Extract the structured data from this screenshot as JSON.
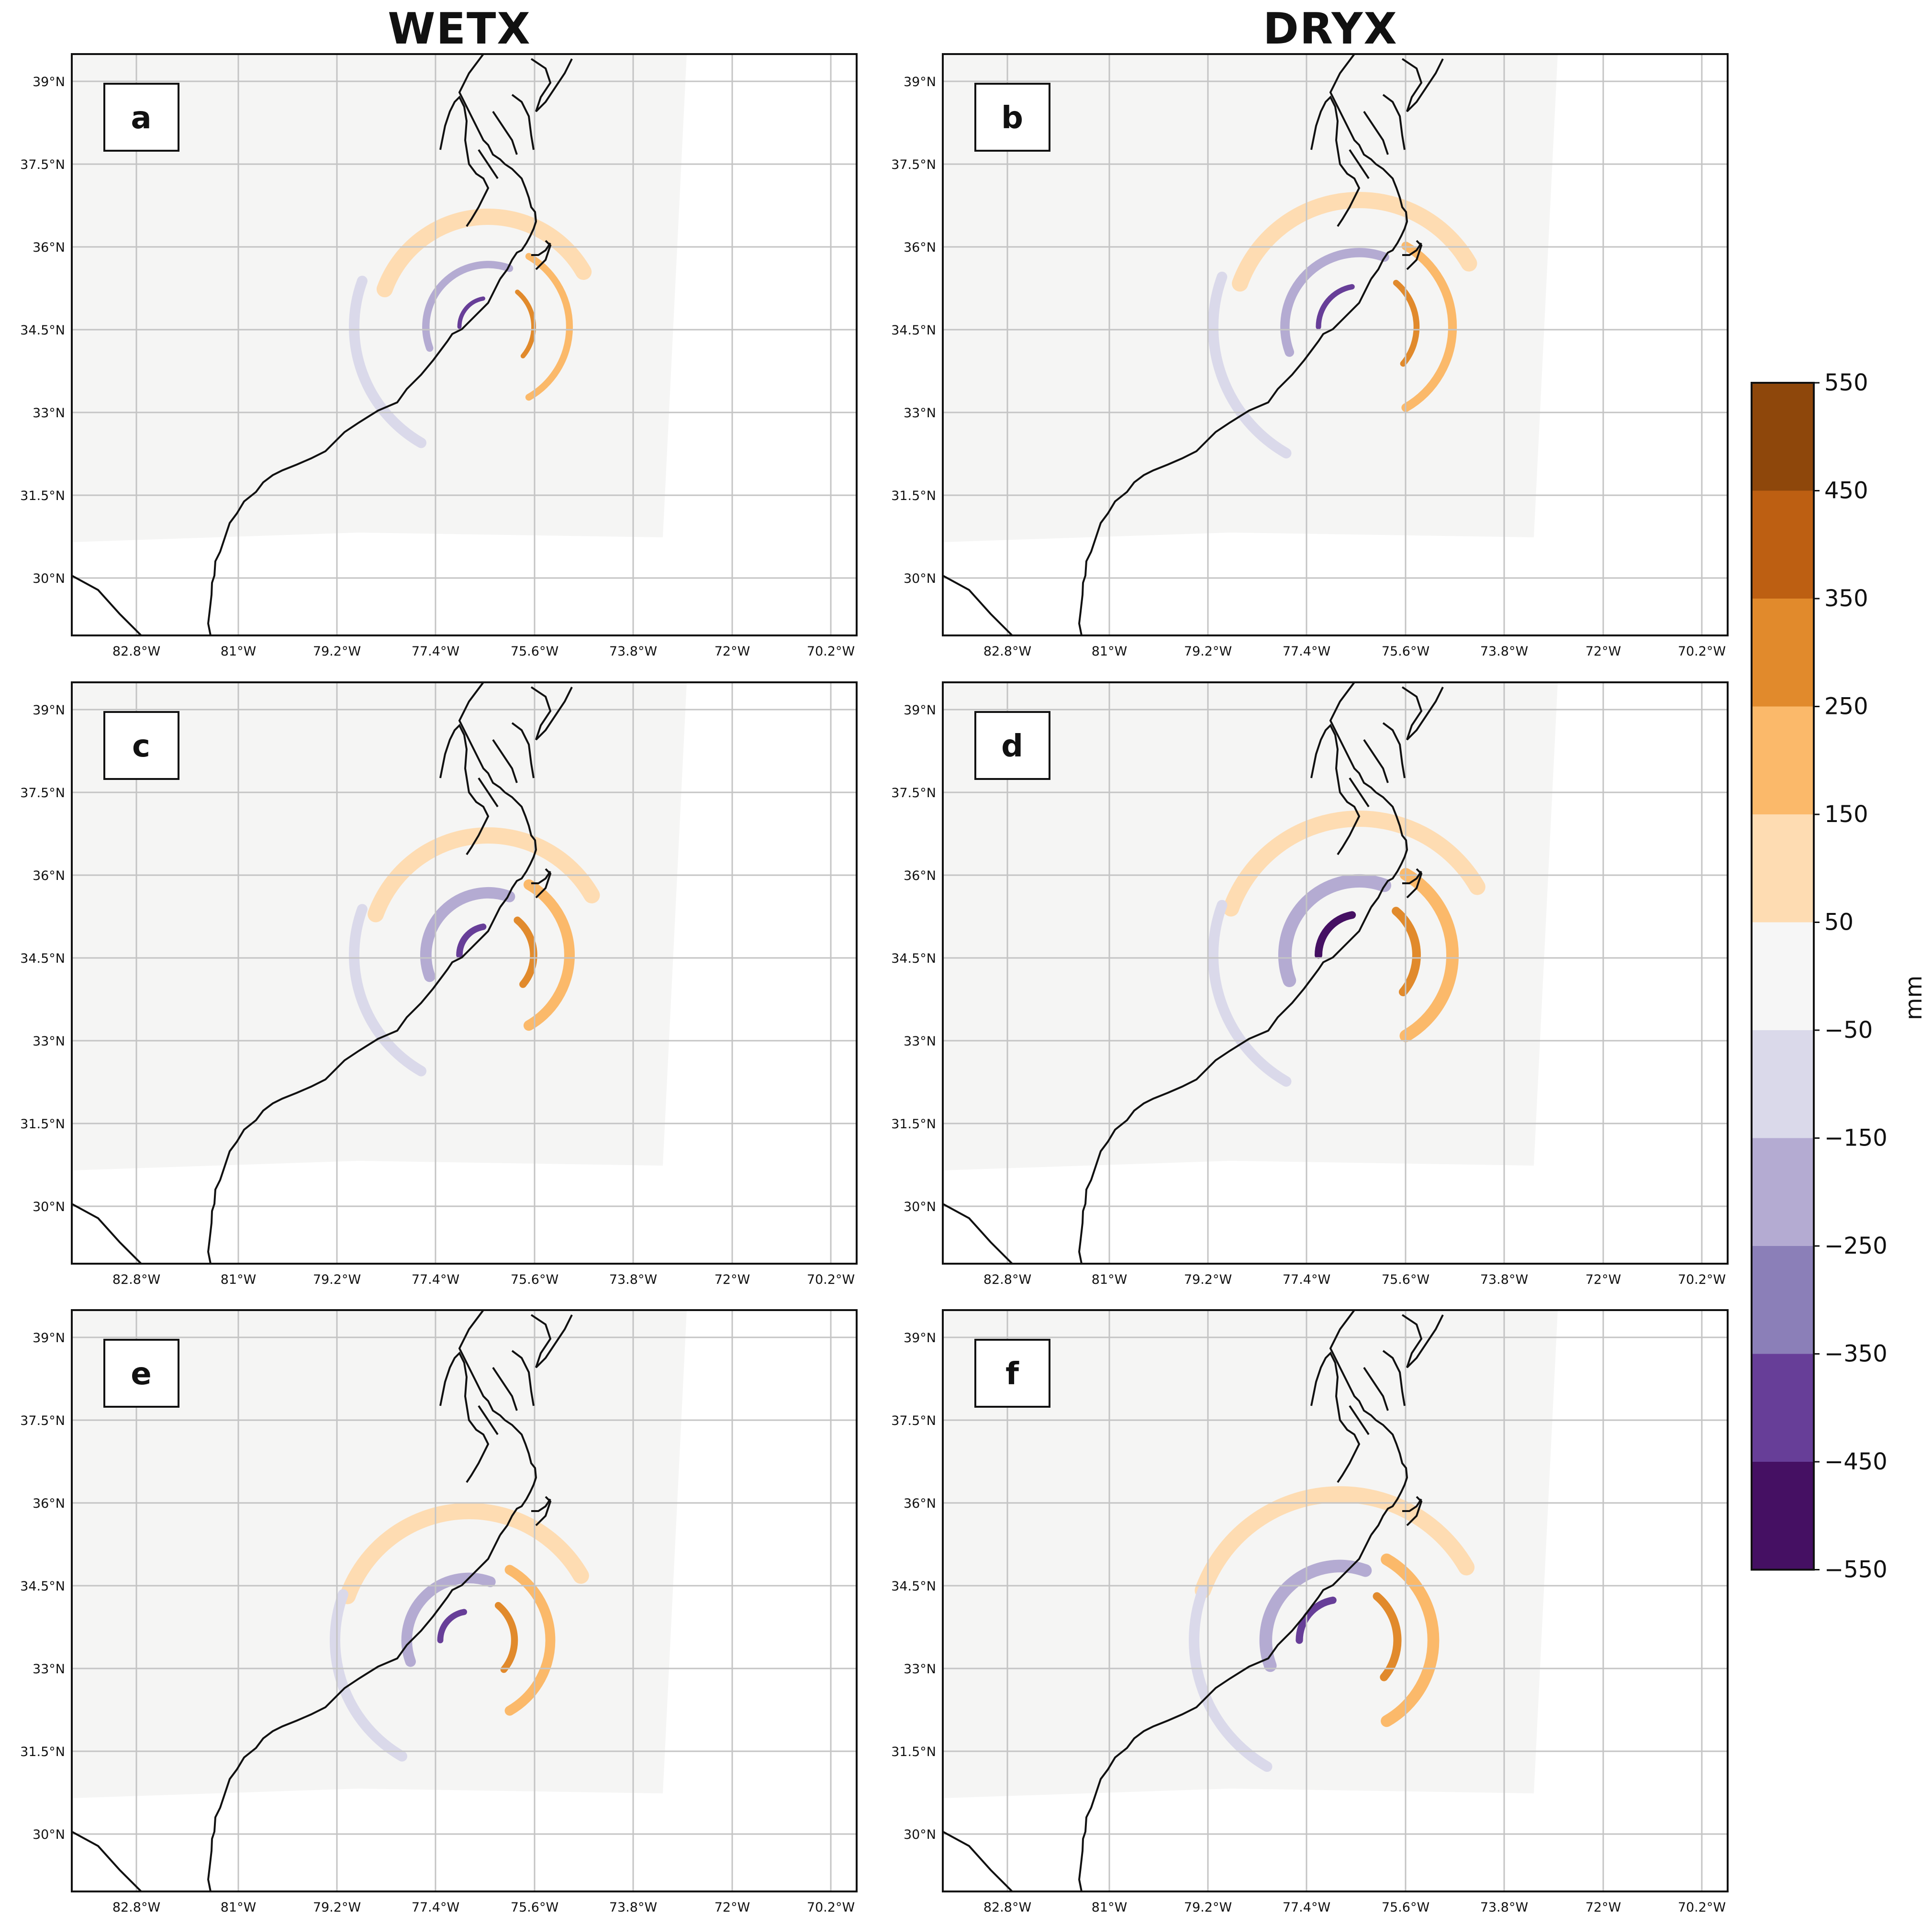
{
  "columns": [
    {
      "id": "wetx",
      "title": "WETX"
    },
    {
      "id": "dryx",
      "title": "DRYX"
    }
  ],
  "panels": [
    {
      "label": "a",
      "column": "WETX",
      "row": 1,
      "intensity": 0.55
    },
    {
      "label": "b",
      "column": "DRYX",
      "row": 1,
      "intensity": 0.7
    },
    {
      "label": "c",
      "column": "WETX",
      "row": 2,
      "intensity": 0.85
    },
    {
      "label": "d",
      "column": "DRYX",
      "row": 2,
      "intensity": 1.0
    },
    {
      "label": "e",
      "column": "WETX",
      "row": 3,
      "intensity": 0.8
    },
    {
      "label": "f",
      "column": "DRYX",
      "row": 3,
      "intensity": 0.95
    }
  ],
  "axes": {
    "lat_ticks": [
      "39°N",
      "37.5°N",
      "36°N",
      "34.5°N",
      "33°N",
      "31.5°N",
      "30°N"
    ],
    "lon_ticks": [
      "82.8°W",
      "81°W",
      "79.2°W",
      "77.4°W",
      "75.6°W",
      "73.8°W",
      "72°W",
      "70.2°W"
    ]
  },
  "colorbar": {
    "units": "mm",
    "tick_labels": [
      "550",
      "450",
      "350",
      "250",
      "150",
      "50",
      "−50",
      "−150",
      "−250",
      "−350",
      "−450",
      "−550"
    ],
    "colors": [
      "#8e470b",
      "#bd5f12",
      "#e18a2c",
      "#fbb96a",
      "#fedcb2",
      "#f6f6f6",
      "#dad9ea",
      "#b4abd2",
      "#8b7fb8",
      "#673e98",
      "#451063"
    ]
  }
}
